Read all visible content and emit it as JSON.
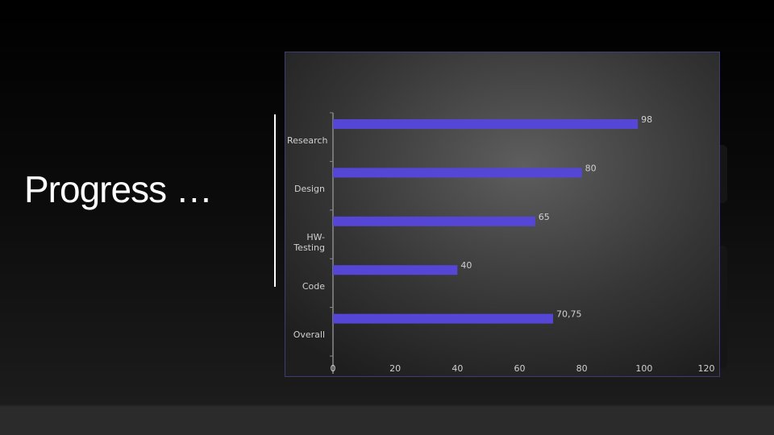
{
  "chart_data": {
    "type": "bar",
    "orientation": "horizontal",
    "title": "Progress …",
    "categories": [
      "Research",
      "Design",
      "HW-Testing",
      "Code",
      "Overall"
    ],
    "values": [
      98,
      80,
      65,
      40,
      70.75
    ],
    "value_labels": [
      "98",
      "80",
      "65",
      "40",
      "70,75"
    ],
    "color": "#5646d6",
    "xlim": [
      0,
      120
    ],
    "xticks": [
      0,
      20,
      40,
      60,
      80,
      100,
      120
    ],
    "grid": false
  }
}
